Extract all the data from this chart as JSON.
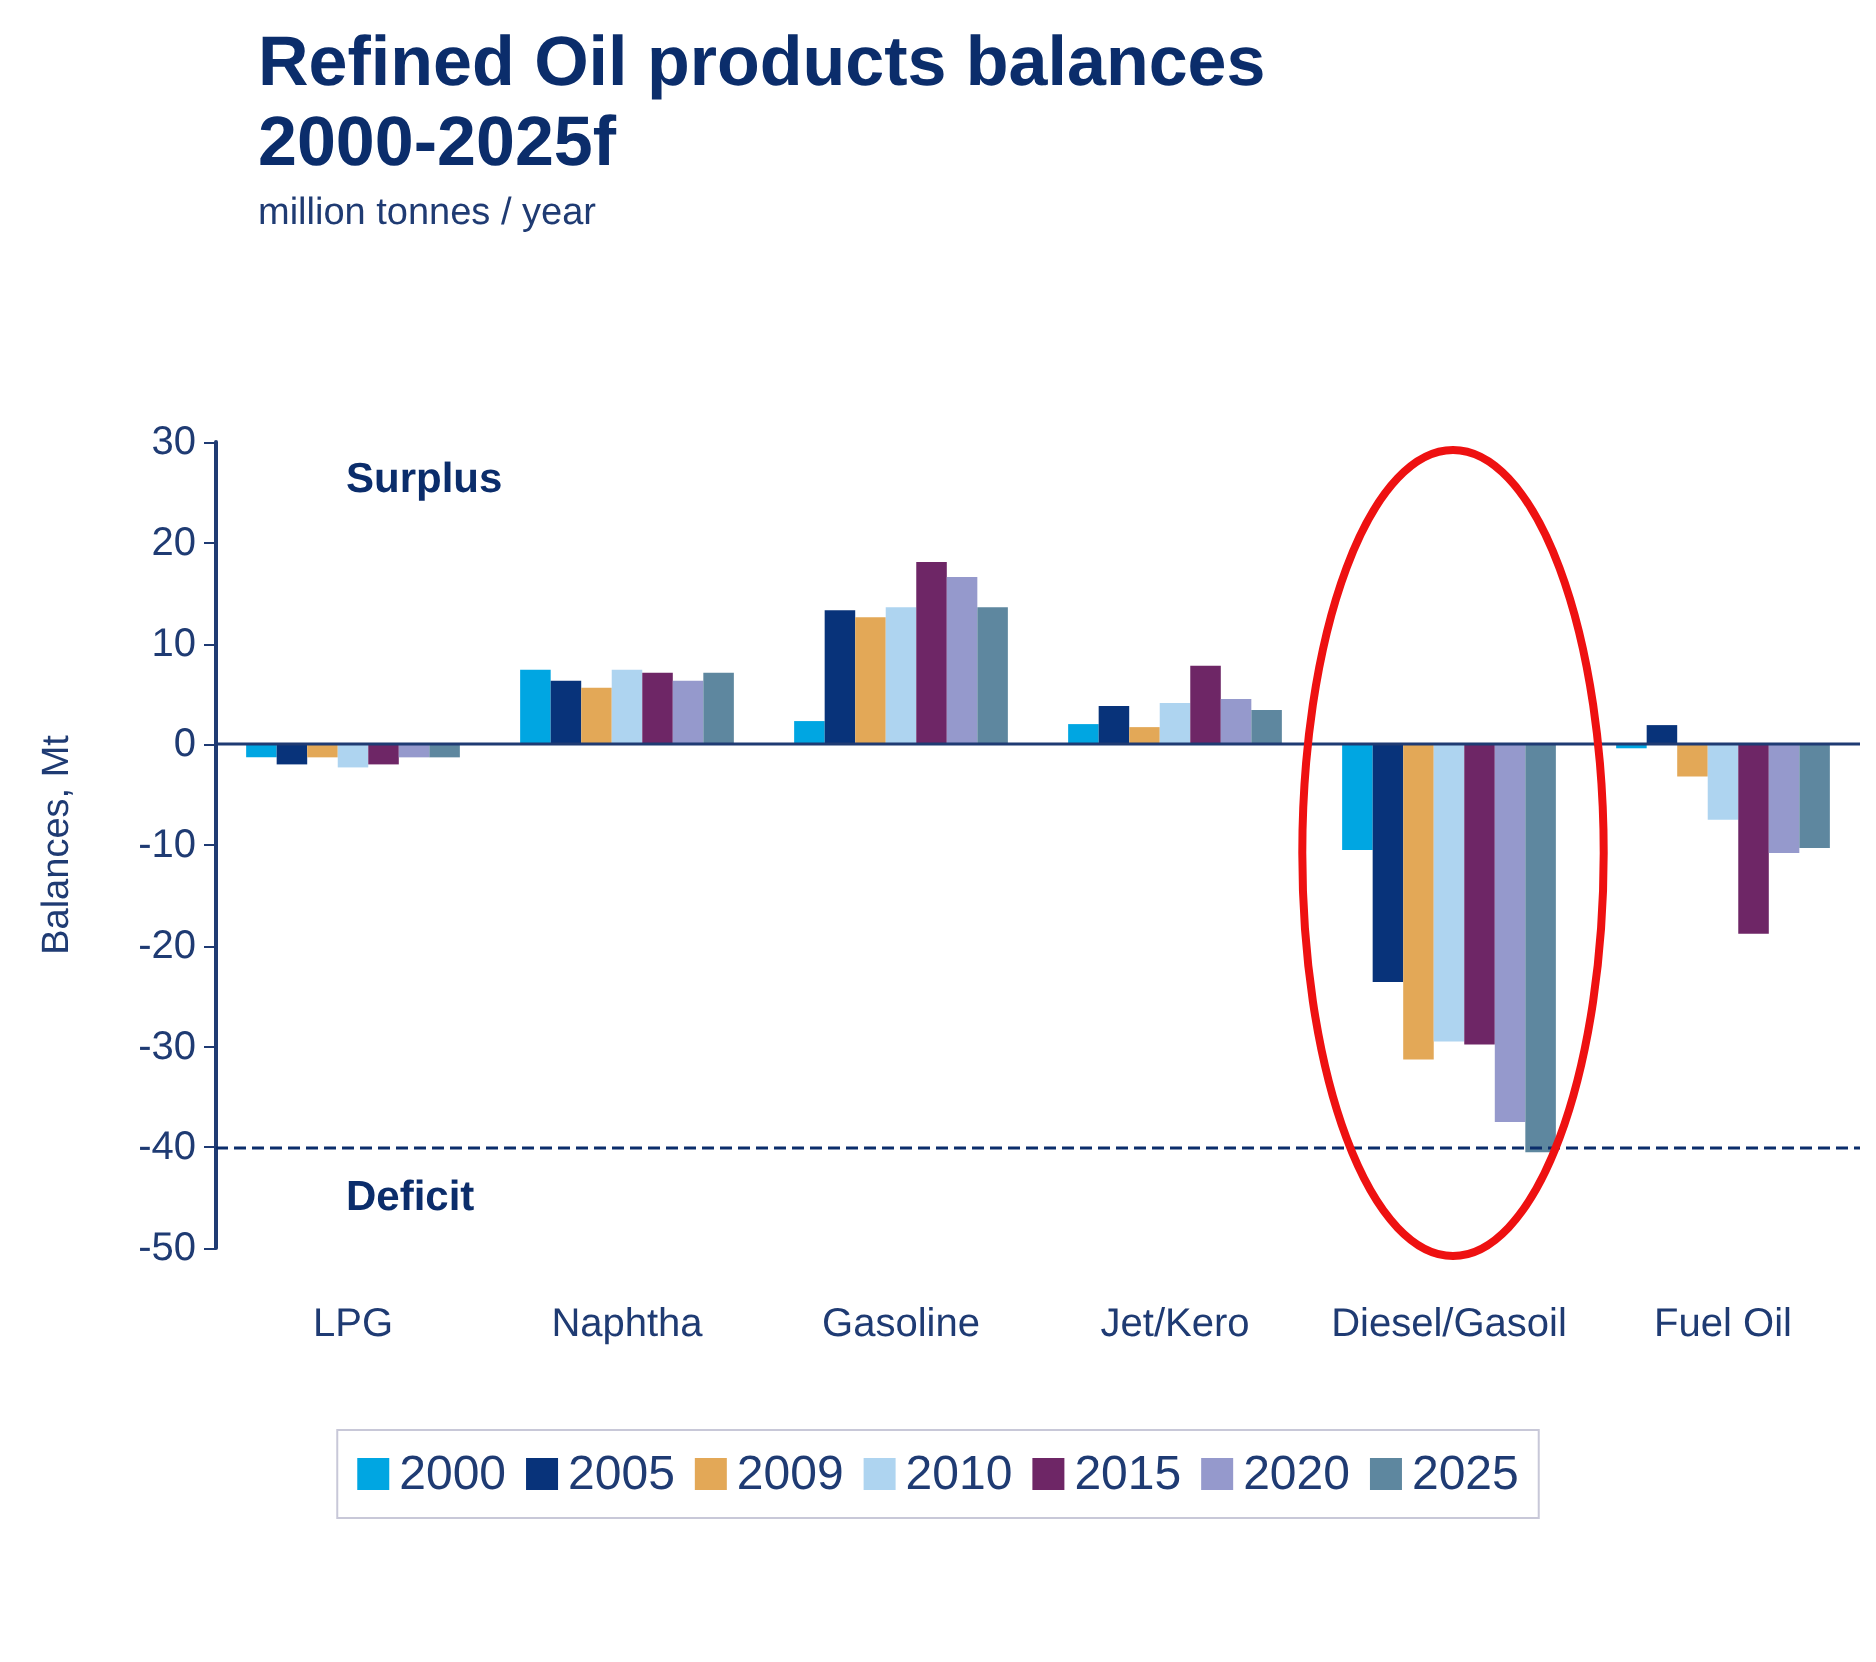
{
  "chart_data": {
    "type": "bar",
    "title": "Refined Oil products balances 2000-2025f",
    "subtitle": "million tonnes / year",
    "ylabel": "Balances, Mt",
    "annotations": [
      "Surplus",
      "Deficit"
    ],
    "categories": [
      "LPG",
      "Naphtha",
      "Gasoline",
      "Jet/Kero",
      "Diesel/Gasoil",
      "Fuel Oil"
    ],
    "series": [
      {
        "name": "2000",
        "color": "#00a6e2",
        "values": [
          -1.3,
          7.4,
          2.3,
          2.0,
          -10.5,
          -0.4
        ]
      },
      {
        "name": "2005",
        "color": "#08337a",
        "values": [
          -2.0,
          6.3,
          13.3,
          3.8,
          -23.6,
          1.9
        ]
      },
      {
        "name": "2009",
        "color": "#e3a857",
        "values": [
          -1.3,
          5.6,
          12.6,
          1.7,
          -31.3,
          -3.2
        ]
      },
      {
        "name": "2010",
        "color": "#aed4f0",
        "values": [
          -2.3,
          7.4,
          13.6,
          4.1,
          -29.5,
          -7.5
        ]
      },
      {
        "name": "2015",
        "color": "#6e2666",
        "values": [
          -2.0,
          7.1,
          18.1,
          7.8,
          -29.8,
          -18.8
        ]
      },
      {
        "name": "2020",
        "color": "#9599cc",
        "values": [
          -1.3,
          6.3,
          16.6,
          4.5,
          -37.5,
          -10.8
        ]
      },
      {
        "name": "2025",
        "color": "#5e879f",
        "values": [
          -1.3,
          7.1,
          13.6,
          3.4,
          -40.5,
          -10.3
        ]
      }
    ],
    "ylim": [
      -50,
      30
    ],
    "yticks": [
      -50,
      -40,
      -30,
      -20,
      -10,
      0,
      10,
      20,
      30
    ],
    "ref_lines": [
      {
        "axis": "y",
        "value": 0,
        "line_style": "solid",
        "color": "#1f3b73"
      },
      {
        "axis": "y",
        "value": -40,
        "line_style": "dashed",
        "color": "#0b2d6b"
      }
    ],
    "grid": false,
    "legend": "bottom"
  }
}
